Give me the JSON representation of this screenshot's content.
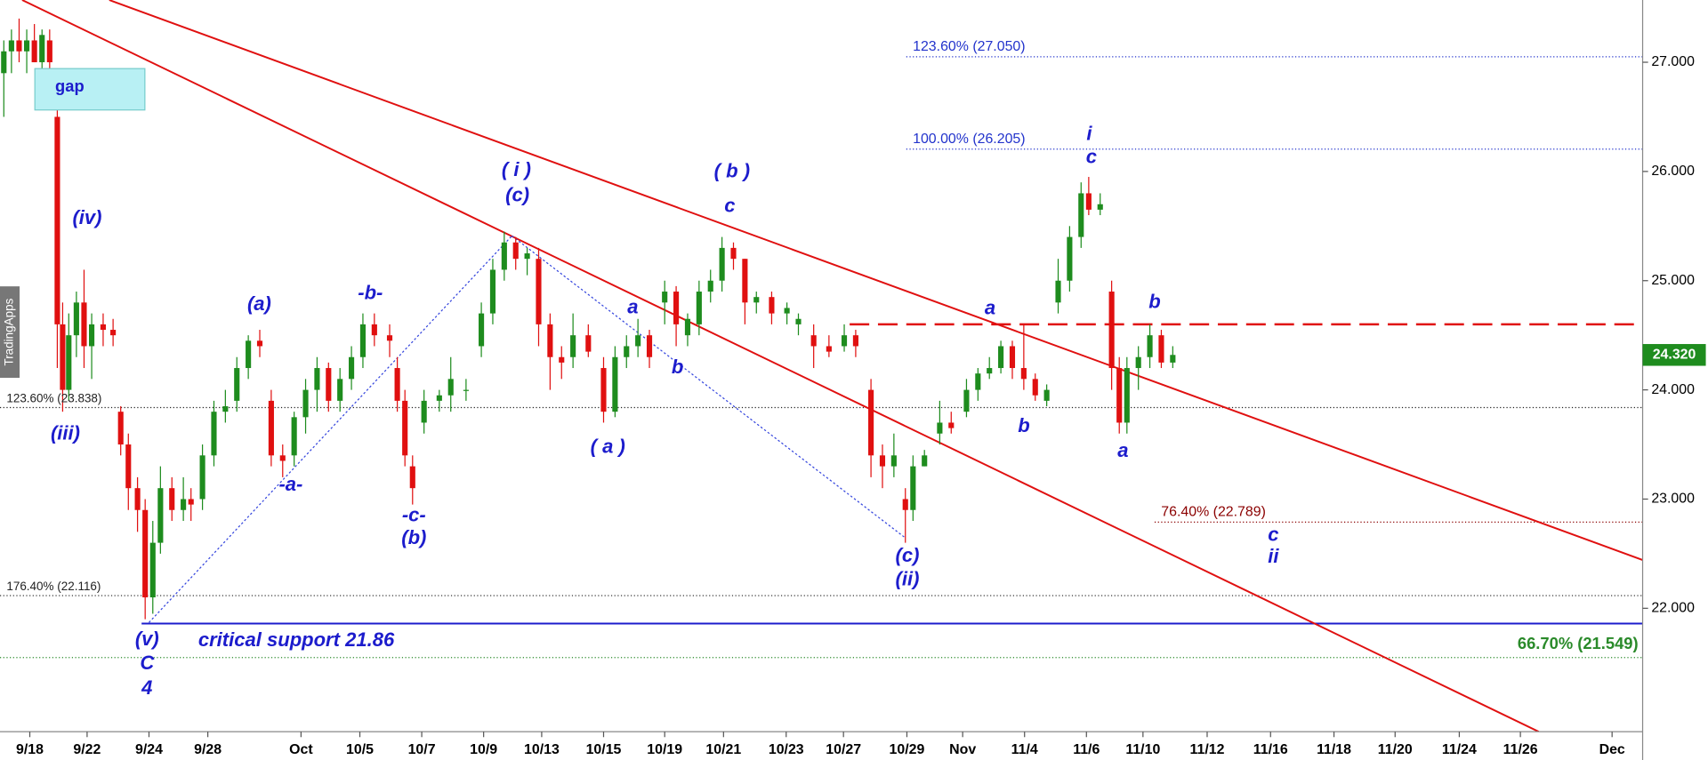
{
  "chart_data": {
    "type": "candlestick",
    "x": [
      0.5,
      1.5,
      2.5,
      3.5,
      4.5,
      5.5,
      6.5,
      7.5,
      8.2,
      9.0,
      10.0,
      11.0,
      12.0,
      13.5,
      14.8,
      15.8,
      16.8,
      18.0,
      19.0,
      20.0,
      21.0,
      22.5,
      24.0,
      25.0,
      26.5,
      28.0,
      29.5,
      31.0,
      32.5,
      34.0,
      35.5,
      37.0,
      38.5,
      40.0,
      41.5,
      43.0,
      44.5,
      46.0,
      47.5,
      49.0,
      51.0,
      52.0,
      53.0,
      54.0,
      55.5,
      57.5,
      59.0,
      61.0,
      63.0,
      64.5,
      66.0,
      67.5,
      69.0,
      70.5,
      72.0,
      73.5,
      75.0,
      77.0,
      79.0,
      80.5,
      82.0,
      83.5,
      85.0,
      87.0,
      88.5,
      90.0,
      91.5,
      93.0,
      94.5,
      96.0,
      97.5,
      99.0,
      101.0,
      103.0,
      104.5,
      106.5,
      108.5,
      110.5,
      112.0,
      114.0,
      115.5,
      117.0,
      118.5,
      119.5,
      121.0,
      123.0,
      124.5,
      126.5,
      128.0,
      129.5,
      131.0,
      132.5,
      134.0,
      135.5,
      137.0,
      138.5,
      140.0,
      141.5,
      142.5,
      144.0,
      145.5,
      146.5,
      147.5,
      149.0,
      150.5,
      152.0,
      153.5
    ],
    "open": [
      26.9,
      27.1,
      27.2,
      27.1,
      27.2,
      27.0,
      27.2,
      26.5,
      24.6,
      24.0,
      24.5,
      24.8,
      24.4,
      24.6,
      24.55,
      23.8,
      23.5,
      23.1,
      22.9,
      22.1,
      22.6,
      23.1,
      22.9,
      23.0,
      23.0,
      23.4,
      23.8,
      23.9,
      24.2,
      24.45,
      23.9,
      23.4,
      23.4,
      23.75,
      24.0,
      24.2,
      23.9,
      24.1,
      24.3,
      24.6,
      24.5,
      24.2,
      23.9,
      23.3,
      23.7,
      23.9,
      23.95,
      24.0,
      24.4,
      24.7,
      25.1,
      25.35,
      25.2,
      25.2,
      24.6,
      24.3,
      24.3,
      24.5,
      24.2,
      23.8,
      24.3,
      24.4,
      24.5,
      24.8,
      24.9,
      24.5,
      24.6,
      24.9,
      25.0,
      25.3,
      25.2,
      24.8,
      24.85,
      24.7,
      24.6,
      24.5,
      24.4,
      24.4,
      24.5,
      24.0,
      23.4,
      23.3,
      23.0,
      22.9,
      23.3,
      23.6,
      23.7,
      23.8,
      24.0,
      24.15,
      24.2,
      24.4,
      24.2,
      24.1,
      23.9,
      24.8,
      25.0,
      25.4,
      25.8,
      25.65,
      24.9,
      24.2,
      23.7,
      24.2,
      24.3,
      24.5,
      24.25
    ],
    "high": [
      27.2,
      27.3,
      27.4,
      27.3,
      27.35,
      27.3,
      27.3,
      26.6,
      24.8,
      24.7,
      24.9,
      25.1,
      24.7,
      24.7,
      24.65,
      23.85,
      23.6,
      23.2,
      23.0,
      22.8,
      23.3,
      23.2,
      23.2,
      23.1,
      23.5,
      23.9,
      24.0,
      24.3,
      24.5,
      24.55,
      24.0,
      23.5,
      23.8,
      24.1,
      24.3,
      24.25,
      24.2,
      24.4,
      24.7,
      24.7,
      24.6,
      24.3,
      24.0,
      23.4,
      24.0,
      24.0,
      24.3,
      24.1,
      24.8,
      25.2,
      25.45,
      25.4,
      25.3,
      25.3,
      24.7,
      24.4,
      24.7,
      24.6,
      24.3,
      24.4,
      24.5,
      24.65,
      24.55,
      25.0,
      24.95,
      24.7,
      25.0,
      25.1,
      25.4,
      25.35,
      25.2,
      24.9,
      24.9,
      24.8,
      24.7,
      24.6,
      24.5,
      24.6,
      24.55,
      24.1,
      23.5,
      23.6,
      23.1,
      23.4,
      23.45,
      23.9,
      23.8,
      24.1,
      24.2,
      24.3,
      24.45,
      24.45,
      24.6,
      24.15,
      24.05,
      25.2,
      25.5,
      25.9,
      25.95,
      25.8,
      25.0,
      24.3,
      24.3,
      24.4,
      24.6,
      24.55,
      24.4
    ],
    "low": [
      26.5,
      26.9,
      27.0,
      26.9,
      27.0,
      26.9,
      26.9,
      24.2,
      23.8,
      23.9,
      24.3,
      24.2,
      24.1,
      24.4,
      24.4,
      23.4,
      22.9,
      22.7,
      21.9,
      21.95,
      22.5,
      22.8,
      22.8,
      22.8,
      22.9,
      23.3,
      23.7,
      23.8,
      24.1,
      24.3,
      23.3,
      23.2,
      23.3,
      23.6,
      23.8,
      23.8,
      23.8,
      24.0,
      24.2,
      24.4,
      24.3,
      23.8,
      23.3,
      22.95,
      23.6,
      23.8,
      23.8,
      23.9,
      24.3,
      24.6,
      25.0,
      25.1,
      25.05,
      24.4,
      24.0,
      24.1,
      24.2,
      24.3,
      23.7,
      23.75,
      24.2,
      24.3,
      24.2,
      24.6,
      24.4,
      24.4,
      24.5,
      24.8,
      24.9,
      25.1,
      24.6,
      24.7,
      24.6,
      24.6,
      24.5,
      24.2,
      24.3,
      24.35,
      24.3,
      23.2,
      23.1,
      23.2,
      22.6,
      22.8,
      23.3,
      23.5,
      23.6,
      23.75,
      23.9,
      24.1,
      24.15,
      24.1,
      24.0,
      23.9,
      23.85,
      24.7,
      24.9,
      25.3,
      25.6,
      25.6,
      24.0,
      23.6,
      23.6,
      24.0,
      24.2,
      24.2,
      24.2
    ],
    "close": [
      27.1,
      27.2,
      27.1,
      27.2,
      27.0,
      27.25,
      27.0,
      24.6,
      24.0,
      24.5,
      24.8,
      24.4,
      24.6,
      24.55,
      24.5,
      23.5,
      23.1,
      22.9,
      22.1,
      22.6,
      23.1,
      22.9,
      23.0,
      22.95,
      23.4,
      23.8,
      23.85,
      24.2,
      24.45,
      24.4,
      23.4,
      23.35,
      23.75,
      24.0,
      24.2,
      23.9,
      24.1,
      24.3,
      24.6,
      24.5,
      24.45,
      23.9,
      23.4,
      23.1,
      23.9,
      23.95,
      24.1,
      24.0,
      24.7,
      25.1,
      25.35,
      25.2,
      25.25,
      24.6,
      24.3,
      24.25,
      24.5,
      24.35,
      23.8,
      24.3,
      24.4,
      24.5,
      24.3,
      24.9,
      24.6,
      24.65,
      24.9,
      25.0,
      25.3,
      25.2,
      24.8,
      24.85,
      24.7,
      24.75,
      24.65,
      24.4,
      24.35,
      24.5,
      24.4,
      23.4,
      23.3,
      23.4,
      22.9,
      23.3,
      23.4,
      23.7,
      23.65,
      24.0,
      24.15,
      24.2,
      24.4,
      24.2,
      24.1,
      23.95,
      24.0,
      25.0,
      25.4,
      25.8,
      25.65,
      25.7,
      24.2,
      23.7,
      24.2,
      24.3,
      24.5,
      24.25,
      24.32
    ],
    "up_color": "#1e8c1e",
    "down_color": "#e01010",
    "xlim": [
      0,
      215
    ],
    "ylim": [
      20.87,
      27.57
    ],
    "xticks": [
      {
        "value": 3.9,
        "label": "9/18"
      },
      {
        "value": 11.4,
        "label": "9/22"
      },
      {
        "value": 19.5,
        "label": "9/24"
      },
      {
        "value": 27.2,
        "label": "9/28"
      },
      {
        "value": 39.4,
        "label": "Oct"
      },
      {
        "value": 47.1,
        "label": "10/5"
      },
      {
        "value": 55.2,
        "label": "10/7"
      },
      {
        "value": 63.3,
        "label": "10/9"
      },
      {
        "value": 70.9,
        "label": "10/13"
      },
      {
        "value": 79,
        "label": "10/15"
      },
      {
        "value": 87,
        "label": "10/19"
      },
      {
        "value": 94.7,
        "label": "10/21"
      },
      {
        "value": 102.9,
        "label": "10/23"
      },
      {
        "value": 110.4,
        "label": "10/27"
      },
      {
        "value": 118.7,
        "label": "10/29"
      },
      {
        "value": 126,
        "label": "Nov"
      },
      {
        "value": 134.1,
        "label": "11/4"
      },
      {
        "value": 142.2,
        "label": "11/6"
      },
      {
        "value": 149.6,
        "label": "11/10"
      },
      {
        "value": 158,
        "label": "11/12"
      },
      {
        "value": 166.3,
        "label": "11/16"
      },
      {
        "value": 174.6,
        "label": "11/18"
      },
      {
        "value": 182.6,
        "label": "11/20"
      },
      {
        "value": 191,
        "label": "11/24"
      },
      {
        "value": 199,
        "label": "11/26"
      },
      {
        "value": 211,
        "label": "Dec"
      }
    ],
    "yticks": [
      {
        "value": 22,
        "label": "22.000"
      },
      {
        "value": 23,
        "label": "23.000"
      },
      {
        "value": 24,
        "label": "24.000"
      },
      {
        "value": 25,
        "label": "25.000"
      },
      {
        "value": 26,
        "label": "26.000"
      },
      {
        "value": 27,
        "label": "27.000"
      }
    ],
    "last_price": {
      "value": 24.32,
      "label": "24.320"
    },
    "levels": [
      {
        "label": "123.60% (27.050)",
        "value": 27.05,
        "color": "#2233cc"
      },
      {
        "label": "100.00% (26.205)",
        "value": 26.205,
        "color": "#2233cc"
      },
      {
        "label": "123.60% (23.838)",
        "value": 23.838,
        "color": "#222222"
      },
      {
        "label": "176.40% (22.116)",
        "value": 22.116,
        "color": "#222222"
      },
      {
        "label": "76.40% (22.789)",
        "value": 22.789,
        "color": "#8b0000"
      },
      {
        "label": "66.70% (21.549)",
        "value": 21.549,
        "color": "#2a8a2a"
      },
      {
        "label": "critical support 21.86",
        "value": 21.86,
        "color": "#1c1ccc"
      }
    ],
    "resistance": {
      "value": 24.6,
      "color": "#e01010"
    },
    "trendlines": [
      [
        [
          14.3,
          27.57
        ],
        [
          223.7,
          22.22
        ]
      ],
      [
        [
          2.9,
          27.57
        ],
        [
          201.4,
          20.87
        ]
      ]
    ],
    "wave_lines": [
      [
        [
          19.5,
          21.87
        ],
        [
          67,
          25.41
        ]
      ],
      [
        [
          67,
          25.41
        ],
        [
          118.4,
          22.65
        ]
      ]
    ],
    "gap_label": "gap",
    "watermark": "TradingApps",
    "annotations": [
      "(iv)",
      "(iii)",
      "(v)",
      "C",
      "4",
      "(a)",
      "-b-",
      "-a-",
      "-c-",
      "(b)",
      "( i )",
      "(c)",
      "( b )",
      "c",
      "a",
      "b",
      "( a )",
      "(c)",
      "(ii)",
      "a",
      "b",
      "i",
      "c",
      "b",
      "a",
      "c",
      "ii"
    ]
  }
}
